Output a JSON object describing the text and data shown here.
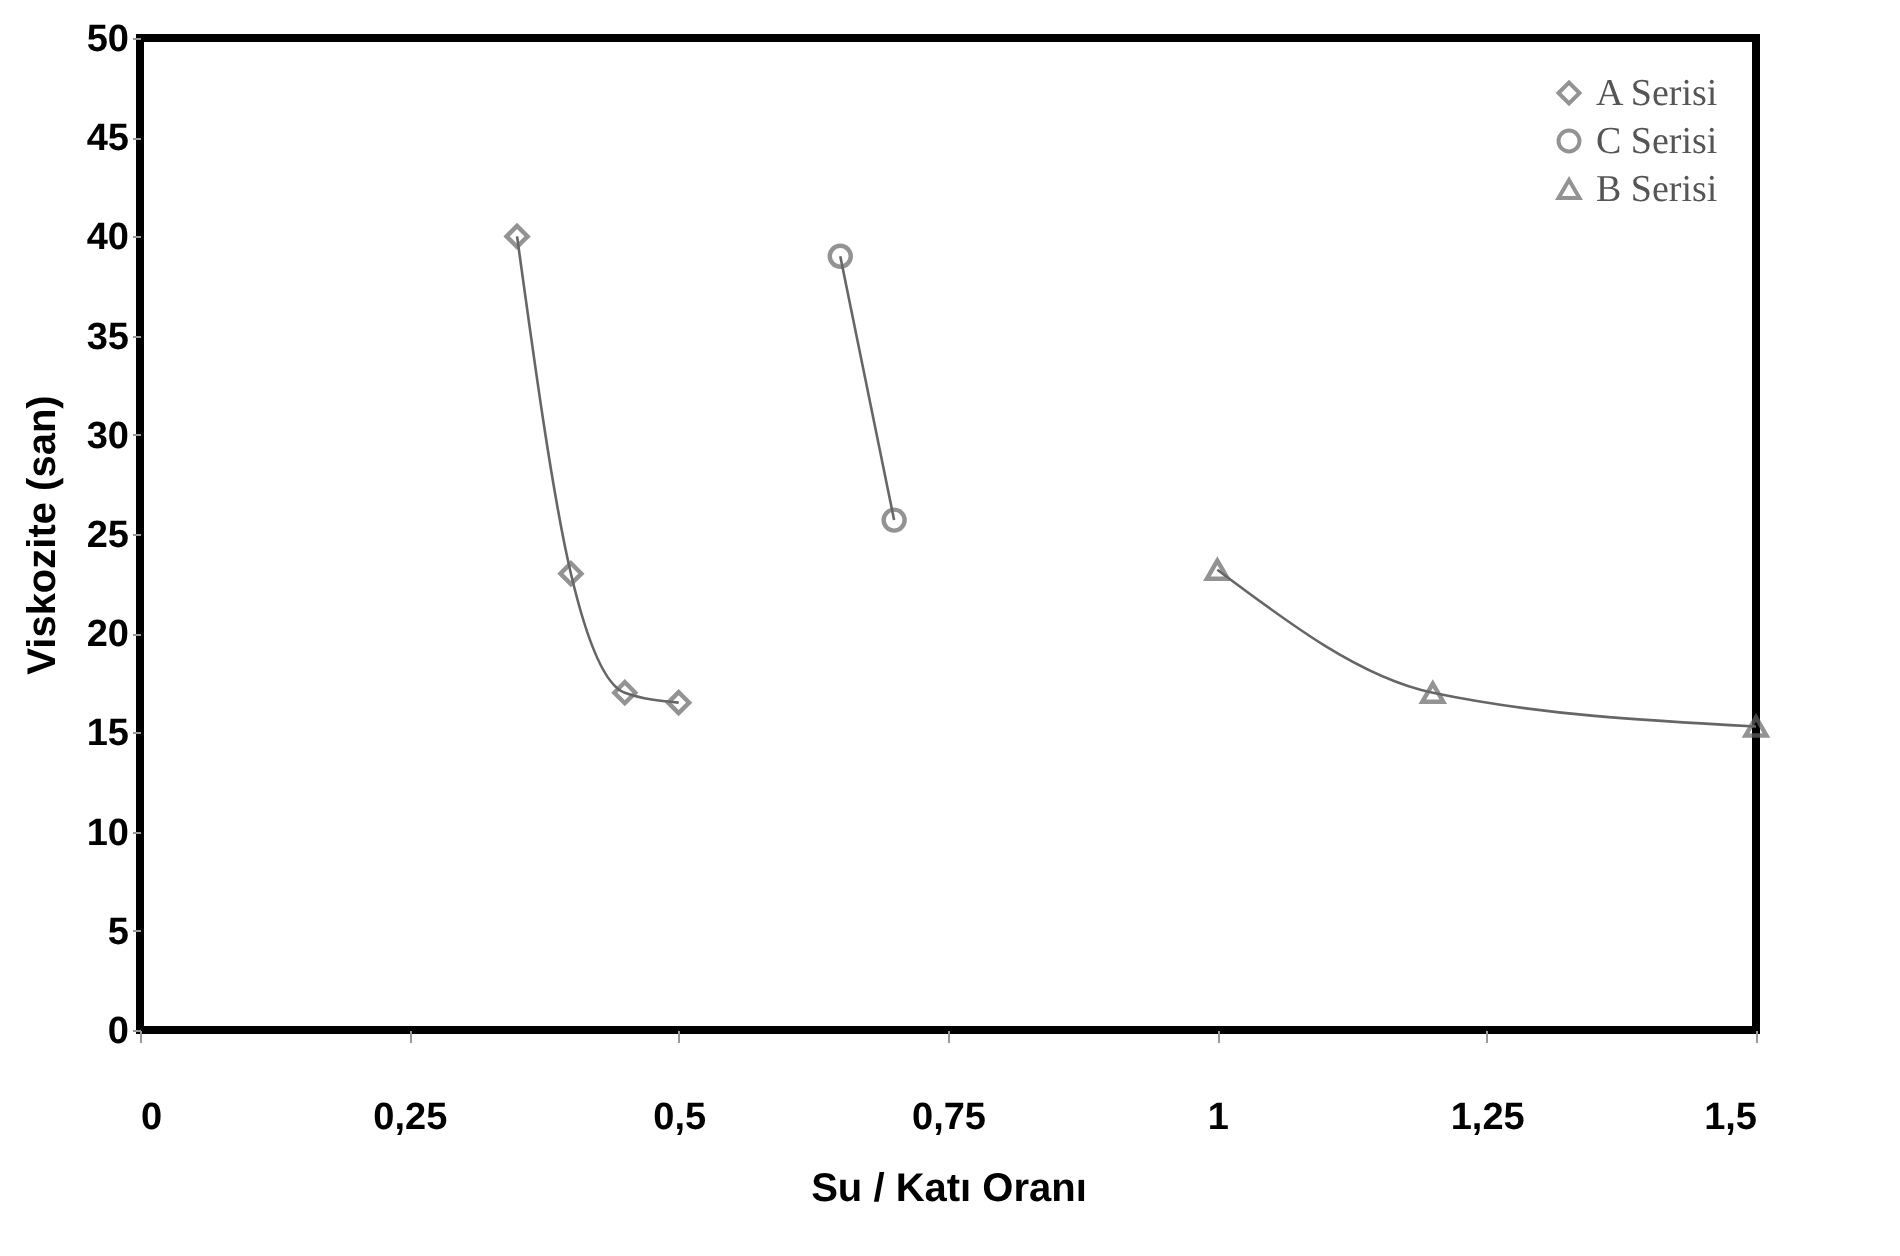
{
  "chart_data": {
    "type": "line",
    "xlabel": "Su / Katı Oranı",
    "ylabel": "Viskozite (san)",
    "xlim": [
      0,
      1.5
    ],
    "xticks": [
      0,
      {
        "value": 0.25,
        "label": "0,25"
      },
      {
        "value": 0.5,
        "label": "0,5"
      },
      {
        "value": 0.75,
        "label": "0,75"
      },
      1,
      {
        "value": 1.25,
        "label": "1,25"
      },
      {
        "value": 1.5,
        "label": "1,5"
      }
    ],
    "ylim": [
      0,
      50
    ],
    "yticks": [
      0,
      5,
      10,
      15,
      20,
      25,
      30,
      35,
      40,
      45,
      50
    ],
    "legend": "top right",
    "line_style": "solid",
    "series": [
      {
        "name": "A Serisi",
        "color": "#666666",
        "marker": "diamond",
        "x": [
          0.35,
          0.4,
          0.45,
          0.5
        ],
        "values": [
          40,
          23,
          17,
          16.5
        ]
      },
      {
        "name": "C Serisi",
        "color": "#666666",
        "marker": "circle",
        "x": [
          0.65,
          0.7
        ],
        "values": [
          39,
          25.7
        ]
      },
      {
        "name": "B Serisi",
        "color": "#666666",
        "marker": "triangle",
        "x": [
          1,
          1.2,
          1.5
        ],
        "values": [
          23.2,
          17,
          15.3
        ]
      }
    ]
  }
}
